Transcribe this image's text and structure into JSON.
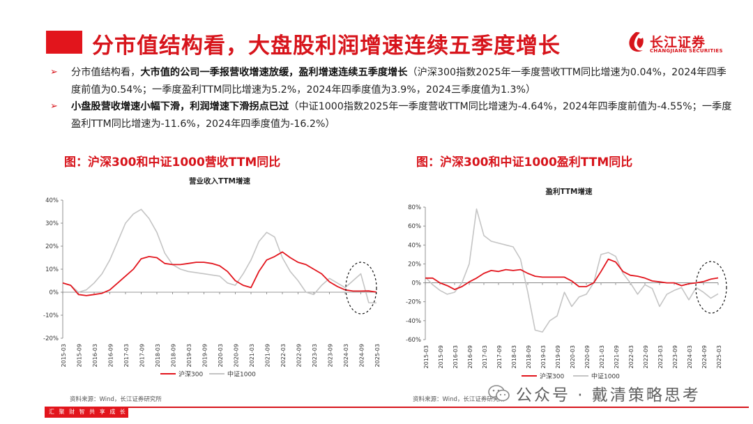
{
  "header": {
    "title": "分市值结构看，大盘股利润增速连续五季度增长",
    "logo_cn": "长江证券",
    "logo_en": "CHANGJIANG SECURITIES"
  },
  "bullets": [
    {
      "lead": "分市值结构看，",
      "bold": "大市值的公司一季报营收增速放缓，盈利增速连续五季度增长",
      "rest": "（沪深300指数2025年一季度营收TTM同比增速为0.04%，2024年四季度前值为0.54%；一季度盈利TTM同比增速为5.2%，2024年四季度值为3.9%，2024三季度值为1.3%）"
    },
    {
      "lead": "",
      "bold": "小盘股营收增速小幅下滑，利润增速下滑拐点已过",
      "rest": "（中证1000指数2025年一季度营收TTM同比增速为-4.64%，2024年四季度前值为-4.55%；一季度盈利TTM同比增速为-11.6%，2024年四季度值为-16.2%）"
    }
  ],
  "figures": {
    "left_title": "图：沪深300和中证1000营收TTM同比",
    "right_title": "图：沪深300和中证1000盈利TTM同比",
    "left_source": "资料来源：Wind，长江证券研究所",
    "right_source": "资料来源：Wind，长江证券研究所"
  },
  "footer": {
    "text": "汇 聚 财 智     共 享 成 长"
  },
  "watermark": "公众号 · 戴清策略思考",
  "colors": {
    "brand_red": "#d7141b",
    "hs300": "#e2141c",
    "zz1000": "#c4c4c4"
  },
  "chart_data": [
    {
      "type": "line",
      "title": "营业收入TTM增速",
      "x_ticks": [
        "2015-03",
        "2015-09",
        "2016-03",
        "2016-09",
        "2017-03",
        "2017-09",
        "2018-03",
        "2018-09",
        "2019-03",
        "2019-09",
        "2020-03",
        "2020-09",
        "2021-03",
        "2021-09",
        "2022-03",
        "2022-09",
        "2023-03",
        "2023-09",
        "2024-03",
        "2024-09",
        "2025-03"
      ],
      "y_ticks": [
        "40%",
        "30%",
        "20%",
        "10%",
        "0%",
        "-10%",
        "-20%"
      ],
      "ylim": [
        -20,
        40
      ],
      "unit": "%",
      "x_range": [
        "2015-03",
        "2025-03"
      ],
      "legend": "bottom",
      "highlight": "dashed ellipse around 2024-09 to 2025-03",
      "series": [
        {
          "name": "沪深300",
          "color": "#e2141c",
          "x": [
            "2015-03",
            "2015-06",
            "2015-09",
            "2015-12",
            "2016-03",
            "2016-06",
            "2016-09",
            "2016-12",
            "2017-03",
            "2017-06",
            "2017-09",
            "2017-12",
            "2018-03",
            "2018-06",
            "2018-09",
            "2018-12",
            "2019-03",
            "2019-06",
            "2019-09",
            "2019-12",
            "2020-03",
            "2020-06",
            "2020-09",
            "2020-12",
            "2021-03",
            "2021-06",
            "2021-09",
            "2021-12",
            "2022-03",
            "2022-06",
            "2022-09",
            "2022-12",
            "2023-03",
            "2023-06",
            "2023-09",
            "2023-12",
            "2024-03",
            "2024-06",
            "2024-09",
            "2024-12",
            "2025-03"
          ],
          "y": [
            4,
            3,
            -1,
            -1.5,
            -1,
            -0.5,
            1,
            4,
            7,
            10,
            14.5,
            15.5,
            15,
            12.5,
            12,
            12,
            12.5,
            13,
            13,
            12.5,
            11.5,
            9,
            5,
            3,
            2,
            9,
            14,
            15.5,
            17.5,
            15,
            13,
            12,
            10,
            8,
            4.5,
            2.5,
            1,
            0.5,
            0.5,
            0.54,
            0.04
          ]
        },
        {
          "name": "中证1000",
          "color": "#c4c4c4",
          "x": [
            "2015-03",
            "2015-06",
            "2015-09",
            "2015-12",
            "2016-03",
            "2016-06",
            "2016-09",
            "2016-12",
            "2017-03",
            "2017-06",
            "2017-09",
            "2017-12",
            "2018-03",
            "2018-06",
            "2018-09",
            "2018-12",
            "2019-03",
            "2019-06",
            "2019-09",
            "2019-12",
            "2020-03",
            "2020-06",
            "2020-09",
            "2020-12",
            "2021-03",
            "2021-06",
            "2021-09",
            "2021-12",
            "2022-03",
            "2022-06",
            "2022-09",
            "2022-12",
            "2023-03",
            "2023-06",
            "2023-09",
            "2023-12",
            "2024-03",
            "2024-06",
            "2024-09",
            "2024-12",
            "2025-03"
          ],
          "y": [
            4,
            3,
            0,
            1,
            4,
            8,
            14,
            22,
            30,
            34,
            36,
            32,
            26,
            17,
            12,
            10,
            9,
            8.5,
            8,
            7.5,
            7,
            4,
            3,
            8,
            14,
            22,
            26,
            24,
            15,
            9,
            5,
            0,
            -1,
            3,
            6,
            4,
            2,
            5,
            8,
            -4.55,
            -4.64
          ]
        }
      ]
    },
    {
      "type": "line",
      "title": "盈利TTM增速",
      "x_ticks": [
        "2015-03",
        "2015-09",
        "2016-03",
        "2016-09",
        "2017-03",
        "2017-09",
        "2018-03",
        "2018-09",
        "2019-03",
        "2019-09",
        "2020-03",
        "2020-09",
        "2021-03",
        "2021-09",
        "2022-03",
        "2022-09",
        "2023-03",
        "2023-09",
        "2024-03",
        "2024-09",
        "2025-03"
      ],
      "y_ticks": [
        "80%",
        "60%",
        "40%",
        "20%",
        "0%",
        "-20%",
        "-40%",
        "-60%"
      ],
      "ylim": [
        -60,
        80
      ],
      "unit": "%",
      "x_range": [
        "2015-03",
        "2025-03"
      ],
      "legend": "bottom",
      "highlight": "dashed ellipse around 2024-09 to 2025-03",
      "series": [
        {
          "name": "沪深300",
          "color": "#e2141c",
          "x": [
            "2015-03",
            "2015-06",
            "2015-09",
            "2015-12",
            "2016-03",
            "2016-06",
            "2016-09",
            "2016-12",
            "2017-03",
            "2017-06",
            "2017-09",
            "2017-12",
            "2018-03",
            "2018-06",
            "2018-09",
            "2018-12",
            "2019-03",
            "2019-06",
            "2019-09",
            "2019-12",
            "2020-03",
            "2020-06",
            "2020-09",
            "2020-12",
            "2021-03",
            "2021-06",
            "2021-09",
            "2021-12",
            "2022-03",
            "2022-06",
            "2022-09",
            "2022-12",
            "2023-03",
            "2023-06",
            "2023-09",
            "2023-12",
            "2024-03",
            "2024-06",
            "2024-09",
            "2024-12",
            "2025-03"
          ],
          "y": [
            5,
            5,
            0,
            -3,
            -7,
            -4,
            1,
            5,
            10,
            13,
            12,
            14,
            13,
            14,
            10,
            7,
            6,
            6,
            6,
            6,
            2,
            -4,
            -4,
            0,
            12,
            25,
            22,
            12,
            8,
            7,
            5,
            2,
            1,
            0,
            0,
            -3,
            -1,
            0,
            1.3,
            3.9,
            5.2
          ]
        },
        {
          "name": "中证1000",
          "color": "#c4c4c4",
          "x": [
            "2015-03",
            "2015-06",
            "2015-09",
            "2015-12",
            "2016-03",
            "2016-06",
            "2016-09",
            "2016-12",
            "2017-03",
            "2017-06",
            "2017-09",
            "2017-12",
            "2018-03",
            "2018-06",
            "2018-09",
            "2018-12",
            "2019-03",
            "2019-06",
            "2019-09",
            "2019-12",
            "2020-03",
            "2020-06",
            "2020-09",
            "2020-12",
            "2021-03",
            "2021-06",
            "2021-09",
            "2021-12",
            "2022-03",
            "2022-06",
            "2022-09",
            "2022-12",
            "2023-03",
            "2023-06",
            "2023-09",
            "2023-12",
            "2024-03",
            "2024-06",
            "2024-09",
            "2024-12",
            "2025-03"
          ],
          "y": [
            6,
            -2,
            -8,
            -12,
            -10,
            0,
            20,
            78,
            50,
            44,
            42,
            40,
            38,
            25,
            -10,
            -50,
            -52,
            -40,
            -35,
            -10,
            -25,
            -15,
            -12,
            0,
            30,
            32,
            28,
            10,
            0,
            -12,
            -2,
            -6,
            -25,
            -12,
            -8,
            -5,
            -18,
            -5,
            -10,
            -16.2,
            -11.6
          ]
        }
      ]
    }
  ]
}
